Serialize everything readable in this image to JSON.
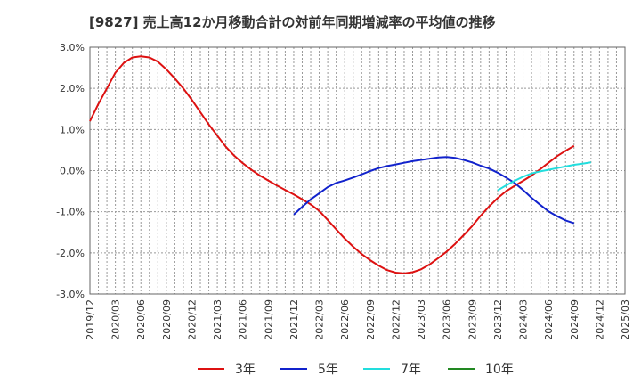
{
  "chart_data": {
    "type": "line",
    "title": "[9827]  売上高12か月移動合計の対前年同期増減率の平均値の推移",
    "xlabel": "",
    "ylabel": "",
    "ylim": [
      -3.0,
      3.0
    ],
    "yticks": [
      {
        "value": 3.0,
        "label": "3.0%"
      },
      {
        "value": 2.0,
        "label": "2.0%"
      },
      {
        "value": 1.0,
        "label": "1.0%"
      },
      {
        "value": 0.0,
        "label": "0.0%"
      },
      {
        "value": -1.0,
        "label": "-1.0%"
      },
      {
        "value": -2.0,
        "label": "-2.0%"
      },
      {
        "value": -3.0,
        "label": "-3.0%"
      }
    ],
    "xticks": [
      "2019/12",
      "2020/03",
      "2020/06",
      "2020/09",
      "2020/12",
      "2021/03",
      "2021/06",
      "2021/09",
      "2021/12",
      "2022/03",
      "2022/06",
      "2022/09",
      "2022/12",
      "2023/03",
      "2023/06",
      "2023/09",
      "2023/12",
      "2024/03",
      "2024/06",
      "2024/09",
      "2024/12",
      "2025/03"
    ],
    "grid": true,
    "legend_position": "bottom",
    "series": [
      {
        "name": "3年",
        "color": "#dd1111",
        "points": [
          [
            "2019/12",
            1.2
          ],
          [
            "2020/01",
            1.62
          ],
          [
            "2020/02",
            2.0
          ],
          [
            "2020/03",
            2.38
          ],
          [
            "2020/04",
            2.62
          ],
          [
            "2020/05",
            2.75
          ],
          [
            "2020/06",
            2.78
          ],
          [
            "2020/07",
            2.75
          ],
          [
            "2020/08",
            2.65
          ],
          [
            "2020/09",
            2.46
          ],
          [
            "2020/10",
            2.24
          ],
          [
            "2020/11",
            2.0
          ],
          [
            "2020/12",
            1.72
          ],
          [
            "2021/01",
            1.42
          ],
          [
            "2021/02",
            1.12
          ],
          [
            "2021/03",
            0.85
          ],
          [
            "2021/04",
            0.58
          ],
          [
            "2021/05",
            0.36
          ],
          [
            "2021/06",
            0.18
          ],
          [
            "2021/07",
            0.02
          ],
          [
            "2021/08",
            -0.12
          ],
          [
            "2021/09",
            -0.24
          ],
          [
            "2021/10",
            -0.36
          ],
          [
            "2021/11",
            -0.47
          ],
          [
            "2021/12",
            -0.58
          ],
          [
            "2022/01",
            -0.7
          ],
          [
            "2022/02",
            -0.82
          ],
          [
            "2022/03",
            -0.98
          ],
          [
            "2022/04",
            -1.2
          ],
          [
            "2022/05",
            -1.43
          ],
          [
            "2022/06",
            -1.65
          ],
          [
            "2022/07",
            -1.85
          ],
          [
            "2022/08",
            -2.03
          ],
          [
            "2022/09",
            -2.18
          ],
          [
            "2022/10",
            -2.31
          ],
          [
            "2022/11",
            -2.42
          ],
          [
            "2022/12",
            -2.48
          ],
          [
            "2023/01",
            -2.5
          ],
          [
            "2023/02",
            -2.47
          ],
          [
            "2023/03",
            -2.4
          ],
          [
            "2023/04",
            -2.28
          ],
          [
            "2023/05",
            -2.13
          ],
          [
            "2023/06",
            -1.97
          ],
          [
            "2023/07",
            -1.78
          ],
          [
            "2023/08",
            -1.57
          ],
          [
            "2023/09",
            -1.35
          ],
          [
            "2023/10",
            -1.1
          ],
          [
            "2023/11",
            -0.87
          ],
          [
            "2023/12",
            -0.67
          ],
          [
            "2024/01",
            -0.5
          ],
          [
            "2024/02",
            -0.37
          ],
          [
            "2024/03",
            -0.25
          ],
          [
            "2024/04",
            -0.12
          ],
          [
            "2024/05",
            0.03
          ],
          [
            "2024/06",
            0.19
          ],
          [
            "2024/07",
            0.35
          ],
          [
            "2024/08",
            0.48
          ],
          [
            "2024/09",
            0.6
          ]
        ]
      },
      {
        "name": "5年",
        "color": "#1122cc",
        "points": [
          [
            "2021/12",
            -1.07
          ],
          [
            "2022/01",
            -0.88
          ],
          [
            "2022/02",
            -0.7
          ],
          [
            "2022/03",
            -0.55
          ],
          [
            "2022/04",
            -0.4
          ],
          [
            "2022/05",
            -0.3
          ],
          [
            "2022/06",
            -0.24
          ],
          [
            "2022/07",
            -0.17
          ],
          [
            "2022/08",
            -0.09
          ],
          [
            "2022/09",
            -0.01
          ],
          [
            "2022/10",
            0.06
          ],
          [
            "2022/11",
            0.11
          ],
          [
            "2022/12",
            0.15
          ],
          [
            "2023/01",
            0.19
          ],
          [
            "2023/02",
            0.23
          ],
          [
            "2023/03",
            0.26
          ],
          [
            "2023/04",
            0.29
          ],
          [
            "2023/05",
            0.32
          ],
          [
            "2023/06",
            0.33
          ],
          [
            "2023/07",
            0.31
          ],
          [
            "2023/08",
            0.26
          ],
          [
            "2023/09",
            0.2
          ],
          [
            "2023/10",
            0.12
          ],
          [
            "2023/11",
            0.05
          ],
          [
            "2023/12",
            -0.05
          ],
          [
            "2024/01",
            -0.17
          ],
          [
            "2024/02",
            -0.3
          ],
          [
            "2024/03",
            -0.47
          ],
          [
            "2024/04",
            -0.66
          ],
          [
            "2024/05",
            -0.83
          ],
          [
            "2024/06",
            -0.99
          ],
          [
            "2024/07",
            -1.11
          ],
          [
            "2024/08",
            -1.21
          ],
          [
            "2024/09",
            -1.28
          ]
        ]
      },
      {
        "name": "7年",
        "color": "#22dddd",
        "points": [
          [
            "2023/12",
            -0.48
          ],
          [
            "2024/01",
            -0.36
          ],
          [
            "2024/02",
            -0.25
          ],
          [
            "2024/03",
            -0.15
          ],
          [
            "2024/04",
            -0.07
          ],
          [
            "2024/05",
            -0.02
          ],
          [
            "2024/06",
            0.02
          ],
          [
            "2024/07",
            0.06
          ],
          [
            "2024/08",
            0.1
          ],
          [
            "2024/09",
            0.14
          ],
          [
            "2024/10",
            0.17
          ],
          [
            "2024/11",
            0.2
          ]
        ]
      },
      {
        "name": "10年",
        "color": "#228822",
        "points": []
      }
    ]
  }
}
